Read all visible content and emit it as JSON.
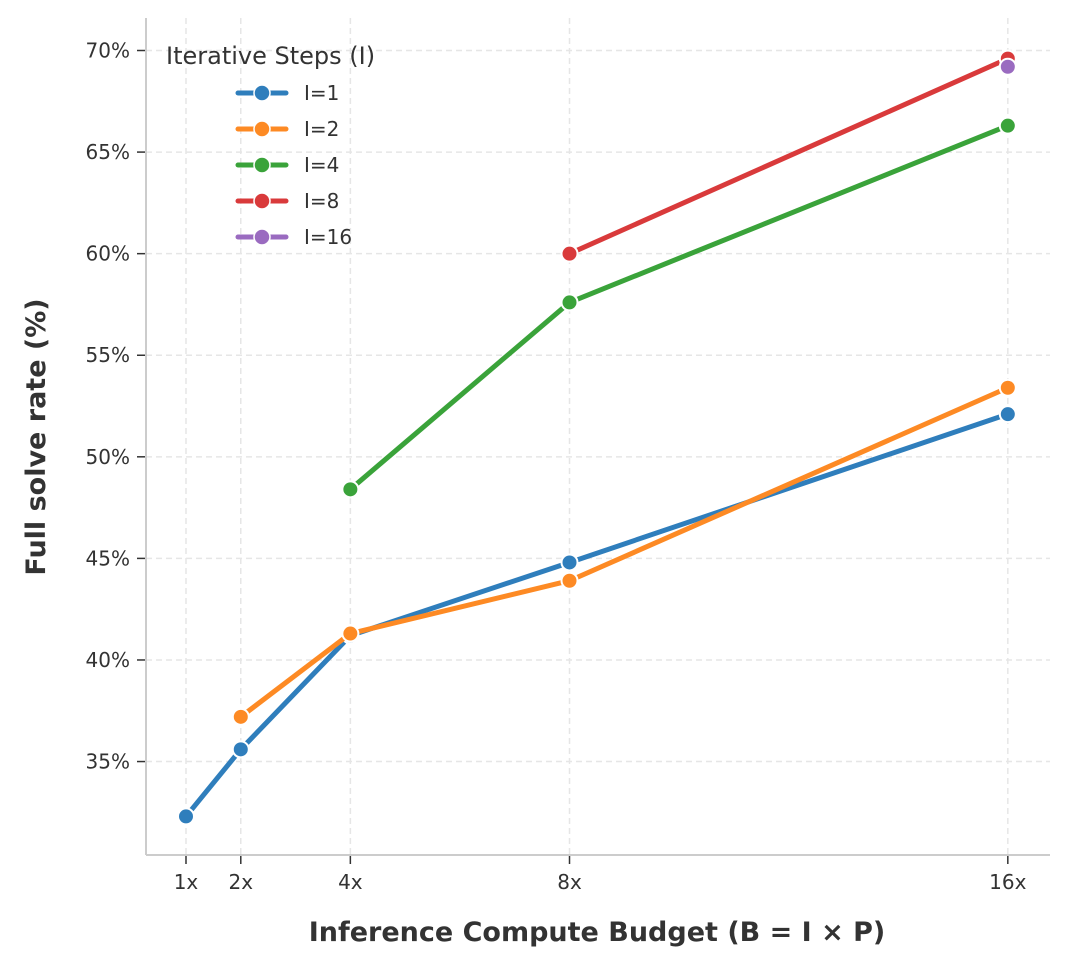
{
  "chart_data": {
    "type": "line",
    "title": "",
    "xlabel": "Inference Compute Budget (B = I × P)",
    "ylabel": "Full solve rate (%)",
    "x_ticks": [
      1,
      2,
      4,
      8,
      16
    ],
    "x_tick_labels": [
      "1x",
      "2x",
      "4x",
      "8x",
      "16x"
    ],
    "y_ticks": [
      35,
      40,
      45,
      50,
      55,
      60,
      65,
      70
    ],
    "y_tick_labels": [
      "35%",
      "40%",
      "45%",
      "50%",
      "55%",
      "60%",
      "65%",
      "70%"
    ],
    "xlim": [
      0.27,
      16.77
    ],
    "ylim": [
      30.4,
      71.6
    ],
    "grid": true,
    "legend": {
      "title": "Iterative Steps (I)",
      "placement": "top-left"
    },
    "series": [
      {
        "name": "I=1",
        "color": "#2f7ebc",
        "x": [
          1,
          2,
          4,
          8,
          16
        ],
        "y": [
          32.3,
          35.6,
          41.2,
          44.8,
          52.1
        ]
      },
      {
        "name": "I=2",
        "color": "#fd8a24",
        "x": [
          2,
          4,
          8,
          16
        ],
        "y": [
          37.2,
          41.3,
          43.9,
          53.4
        ]
      },
      {
        "name": "I=4",
        "color": "#3aa33a",
        "x": [
          4,
          8,
          16
        ],
        "y": [
          48.4,
          57.6,
          66.3
        ]
      },
      {
        "name": "I=8",
        "color": "#d93a3b",
        "x": [
          8,
          16
        ],
        "y": [
          60.0,
          69.6
        ]
      },
      {
        "name": "I=16",
        "color": "#9a6bc0",
        "x": [
          16
        ],
        "y": [
          69.2
        ]
      }
    ]
  }
}
